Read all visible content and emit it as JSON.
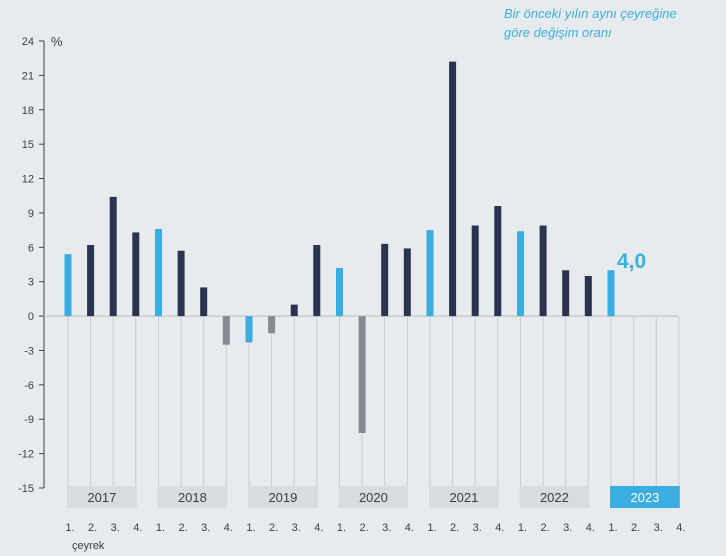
{
  "note": {
    "line1": "Bir önceki yılın aynı çeyreğine",
    "line2": "göre değişim oranı"
  },
  "chart_data": {
    "type": "bar",
    "y_unit_label": "%",
    "ylim": [
      -15,
      24
    ],
    "y_ticks": [
      24,
      21,
      18,
      15,
      12,
      9,
      6,
      3,
      0,
      -3,
      -6,
      -9,
      -12,
      -15
    ],
    "years": [
      "2017",
      "2018",
      "2019",
      "2020",
      "2021",
      "2022",
      "2023"
    ],
    "quarter_labels": [
      "1.",
      "2.",
      "3.",
      "4."
    ],
    "quarter_caption": "çeyrek",
    "highlight_label": "4,0",
    "values": [
      5.4,
      6.2,
      10.4,
      7.3,
      7.6,
      5.7,
      2.5,
      -2.5,
      -2.3,
      -1.5,
      1.0,
      6.2,
      4.2,
      -10.2,
      6.3,
      5.9,
      7.5,
      22.2,
      7.9,
      9.6,
      7.4,
      7.9,
      4.0,
      3.5,
      4.0,
      null,
      null,
      null
    ],
    "colors": {
      "first_quarter": "#3aaee0",
      "positive": "#2a3350",
      "negative": "#858b93",
      "year_box": "#d9dcde",
      "year_box_current": "#3aaee0",
      "axis_text": "#3a3f47",
      "grid": "#c9cdd1"
    }
  }
}
